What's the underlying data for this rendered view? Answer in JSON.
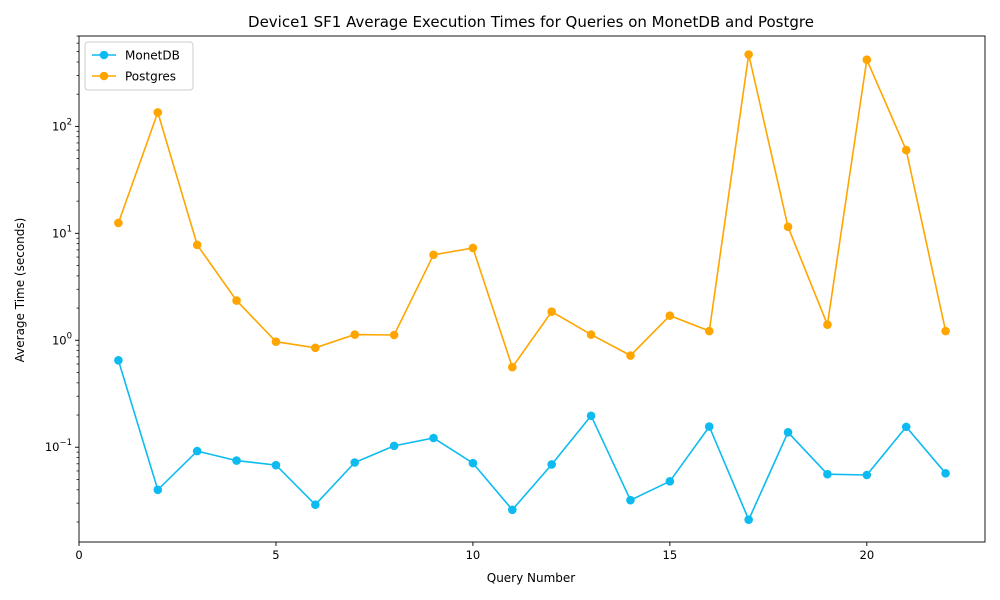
{
  "chart_data": {
    "type": "line",
    "title": "Device1 SF1 Average Execution Times for Queries on MonetDB and Postgre",
    "xlabel": "Query Number",
    "ylabel": "Average Time (seconds)",
    "yscale": "log",
    "xlim": [
      0,
      23
    ],
    "ylim": [
      0.013,
      700
    ],
    "xticks": [
      0,
      5,
      10,
      15,
      20
    ],
    "yticks": [
      {
        "value": 0.1,
        "base": "10",
        "exp": "−1"
      },
      {
        "value": 1,
        "base": "10",
        "exp": "0"
      },
      {
        "value": 10,
        "base": "10",
        "exp": "1"
      },
      {
        "value": 100,
        "base": "10",
        "exp": "2"
      }
    ],
    "grid": false,
    "legend_position": "top-left",
    "x": [
      1,
      2,
      3,
      4,
      5,
      6,
      7,
      8,
      9,
      10,
      11,
      12,
      13,
      14,
      15,
      16,
      17,
      18,
      19,
      20,
      21,
      22
    ],
    "series": [
      {
        "name": "MonetDB",
        "color": "#0dbbf0",
        "values": [
          0.65,
          0.04,
          0.092,
          0.075,
          0.068,
          0.029,
          0.072,
          0.103,
          0.122,
          0.071,
          0.026,
          0.069,
          0.197,
          0.032,
          0.048,
          0.156,
          0.021,
          0.138,
          0.056,
          0.055,
          0.155,
          0.057
        ]
      },
      {
        "name": "Postgres",
        "color": "#ffa500",
        "values": [
          12.5,
          135,
          7.8,
          2.35,
          0.97,
          0.85,
          1.13,
          1.12,
          6.3,
          7.3,
          0.56,
          1.85,
          1.13,
          0.72,
          1.7,
          1.22,
          470,
          11.5,
          1.4,
          420,
          60,
          1.22
        ]
      }
    ]
  }
}
